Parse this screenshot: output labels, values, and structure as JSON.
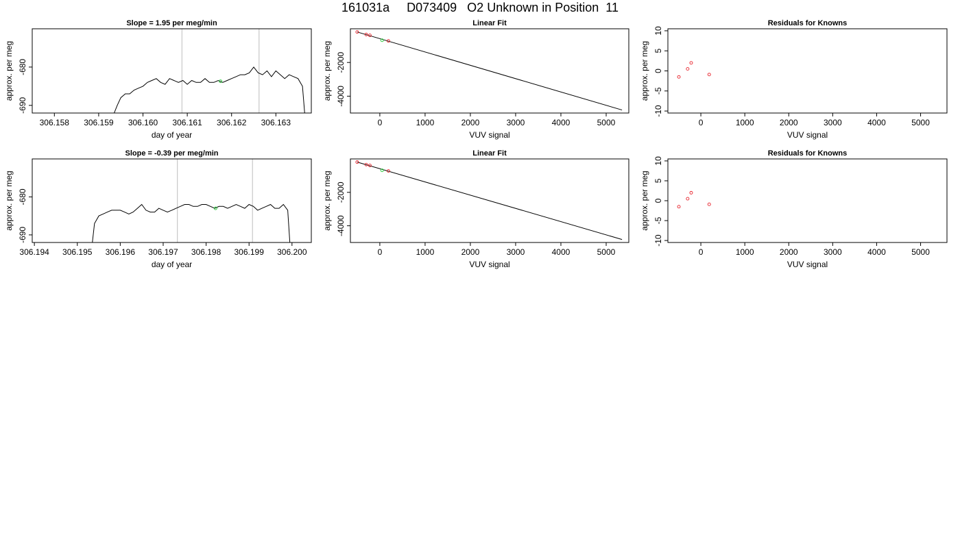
{
  "page_title": "161031a     D073409   O2 Unknown in Position  11",
  "colors": {
    "line": "#000000",
    "vline": "#c8c8c8",
    "known_point": "#e8202a",
    "unknown_point": "#2ecc40"
  },
  "chart_data": [
    {
      "id": "trace1",
      "type": "line",
      "title": "Slope =  1.95  per meg/min",
      "xlabel": "day of year",
      "ylabel": "approx. per meg",
      "xlim": [
        306.1575,
        306.1638
      ],
      "ylim": [
        -692,
        -670
      ],
      "xticks": [
        "306.158",
        "306.159",
        "306.160",
        "306.161",
        "306.162",
        "306.163"
      ],
      "xtick_values": [
        306.158,
        306.159,
        306.16,
        306.161,
        306.162,
        306.163
      ],
      "yticks": [
        "-680",
        "-690"
      ],
      "ytick_values": [
        -680,
        -690
      ],
      "vlines": [
        306.16088,
        306.16262
      ],
      "series": [
        {
          "x": [
            306.15935,
            306.15942,
            306.1595,
            306.1596,
            306.1597,
            306.1598,
            306.1599,
            306.16,
            306.1601,
            306.1602,
            306.1603,
            306.1604,
            306.1605,
            306.1606,
            306.1607,
            306.1608,
            306.1609,
            306.161,
            306.1611,
            306.1612,
            306.1613,
            306.1614,
            306.1615,
            306.1616,
            306.1617,
            306.1618,
            306.1619,
            306.162,
            306.1621,
            306.1622,
            306.1623,
            306.1624,
            306.1625,
            306.1626,
            306.1627,
            306.1628,
            306.1629,
            306.163,
            306.1631,
            306.1632,
            306.1633,
            306.1634,
            306.1635,
            306.1636,
            306.16365
          ],
          "y": [
            -692,
            -690,
            -688,
            -687,
            -687,
            -686,
            -685.5,
            -685,
            -684,
            -683.5,
            -683,
            -684,
            -684.5,
            -683,
            -683.5,
            -684,
            -683.5,
            -684.5,
            -683.5,
            -684,
            -684,
            -683,
            -684,
            -684,
            -683.5,
            -684,
            -683.5,
            -683,
            -682.5,
            -682,
            -682,
            -681.5,
            -680,
            -681.5,
            -682,
            -681,
            -682.5,
            -681,
            -682,
            -683,
            -682,
            -682.5,
            -683,
            -685,
            -692
          ]
        }
      ],
      "unknown_points": [
        {
          "x": 306.16175,
          "y": -683.7
        }
      ]
    },
    {
      "id": "fit1",
      "type": "scatter",
      "title": "Linear Fit",
      "xlabel": "VUV signal",
      "ylabel": "approx. per meg",
      "xlim": [
        -650,
        5500
      ],
      "ylim": [
        -5000,
        0
      ],
      "xticks": [
        "0",
        "1000",
        "2000",
        "3000",
        "4000",
        "5000"
      ],
      "xtick_values": [
        0,
        1000,
        2000,
        3000,
        4000,
        5000
      ],
      "yticks": [
        "-2000",
        "-4000"
      ],
      "ytick_values": [
        -2000,
        -4000
      ],
      "fit_line": {
        "x": [
          -500,
          5350
        ],
        "y": [
          -190,
          -4820
        ]
      },
      "known_points": [
        {
          "x": -500,
          "y": -190
        },
        {
          "x": -300,
          "y": -340
        },
        {
          "x": -220,
          "y": -390
        },
        {
          "x": 190,
          "y": -720
        }
      ],
      "unknown_points": [
        {
          "x": 50,
          "y": -680
        }
      ]
    },
    {
      "id": "resid1",
      "type": "scatter",
      "title": "Residuals for Knowns",
      "xlabel": "VUV signal",
      "ylabel": "approx. per meg",
      "xlim": [
        -750,
        5600
      ],
      "ylim": [
        -10.5,
        10.5
      ],
      "xticks": [
        "0",
        "1000",
        "2000",
        "3000",
        "4000",
        "5000"
      ],
      "xtick_values": [
        0,
        1000,
        2000,
        3000,
        4000,
        5000
      ],
      "yticks": [
        "10",
        "5",
        "0",
        "-5",
        "-10"
      ],
      "ytick_values": [
        10,
        5,
        0,
        -5,
        -10
      ],
      "known_points": [
        {
          "x": -500,
          "y": -1.5
        },
        {
          "x": -300,
          "y": 0.5
        },
        {
          "x": -220,
          "y": 2.0
        },
        {
          "x": 190,
          "y": -0.9
        }
      ]
    },
    {
      "id": "trace2",
      "type": "line",
      "title": "Slope =  -0.39  per meg/min",
      "xlabel": "day of year",
      "ylabel": "approx. per meg",
      "xlim": [
        306.19395,
        306.20045
      ],
      "ylim": [
        -692,
        -670
      ],
      "xticks": [
        "306.194",
        "306.195",
        "306.196",
        "306.197",
        "306.198",
        "306.199",
        "306.200"
      ],
      "xtick_values": [
        306.194,
        306.195,
        306.196,
        306.197,
        306.198,
        306.199,
        306.2
      ],
      "yticks": [
        "-680",
        "-690"
      ],
      "ytick_values": [
        -680,
        -690
      ],
      "vlines": [
        306.19733,
        306.19908
      ],
      "series": [
        {
          "x": [
            306.19535,
            306.1954,
            306.1955,
            306.1956,
            306.1957,
            306.1958,
            306.1959,
            306.196,
            306.1961,
            306.1962,
            306.1963,
            306.1964,
            306.1965,
            306.1966,
            306.1967,
            306.1968,
            306.1969,
            306.197,
            306.1971,
            306.1972,
            306.1973,
            306.1974,
            306.1975,
            306.1976,
            306.1977,
            306.1978,
            306.1979,
            306.198,
            306.1981,
            306.1982,
            306.1983,
            306.1984,
            306.1985,
            306.1986,
            306.1987,
            306.1988,
            306.1989,
            306.199,
            306.1991,
            306.1992,
            306.1993,
            306.1994,
            306.1995,
            306.1996,
            306.1997,
            306.1998,
            306.1999,
            306.19995
          ],
          "y": [
            -692,
            -687,
            -685,
            -684.5,
            -684,
            -683.5,
            -683.5,
            -683.5,
            -684,
            -684.5,
            -684,
            -683,
            -682,
            -683.5,
            -684,
            -684,
            -683,
            -683.5,
            -684,
            -683.5,
            -683,
            -682.5,
            -682,
            -682,
            -682.5,
            -682.5,
            -682,
            -682,
            -682.5,
            -683,
            -682.5,
            -682.5,
            -683,
            -682.5,
            -682,
            -682.5,
            -683,
            -682,
            -682.5,
            -683.5,
            -683,
            -682.5,
            -682,
            -683,
            -683,
            -682,
            -683.5,
            -692
          ]
        }
      ],
      "unknown_points": [
        {
          "x": 306.19822,
          "y": -683.0
        }
      ]
    },
    {
      "id": "fit2",
      "type": "scatter",
      "title": "Linear Fit",
      "xlabel": "VUV signal",
      "ylabel": "approx. per meg",
      "xlim": [
        -650,
        5500
      ],
      "ylim": [
        -5000,
        0
      ],
      "xticks": [
        "0",
        "1000",
        "2000",
        "3000",
        "4000",
        "5000"
      ],
      "xtick_values": [
        0,
        1000,
        2000,
        3000,
        4000,
        5000
      ],
      "yticks": [
        "-2000",
        "-4000"
      ],
      "ytick_values": [
        -2000,
        -4000
      ],
      "fit_line": {
        "x": [
          -500,
          5350
        ],
        "y": [
          -190,
          -4820
        ]
      },
      "known_points": [
        {
          "x": -500,
          "y": -190
        },
        {
          "x": -300,
          "y": -340
        },
        {
          "x": -220,
          "y": -390
        },
        {
          "x": 190,
          "y": -720
        }
      ],
      "unknown_points": [
        {
          "x": 50,
          "y": -680
        }
      ]
    },
    {
      "id": "resid2",
      "type": "scatter",
      "title": "Residuals for Knowns",
      "xlabel": "VUV signal",
      "ylabel": "approx. per meg",
      "xlim": [
        -750,
        5600
      ],
      "ylim": [
        -10.5,
        10.5
      ],
      "xticks": [
        "0",
        "1000",
        "2000",
        "3000",
        "4000",
        "5000"
      ],
      "xtick_values": [
        0,
        1000,
        2000,
        3000,
        4000,
        5000
      ],
      "yticks": [
        "10",
        "5",
        "0",
        "-5",
        "-10"
      ],
      "ytick_values": [
        10,
        5,
        0,
        -5,
        -10
      ],
      "known_points": [
        {
          "x": -500,
          "y": -1.5
        },
        {
          "x": -300,
          "y": 0.5
        },
        {
          "x": -220,
          "y": 2.0
        },
        {
          "x": 190,
          "y": -0.9
        }
      ]
    }
  ]
}
